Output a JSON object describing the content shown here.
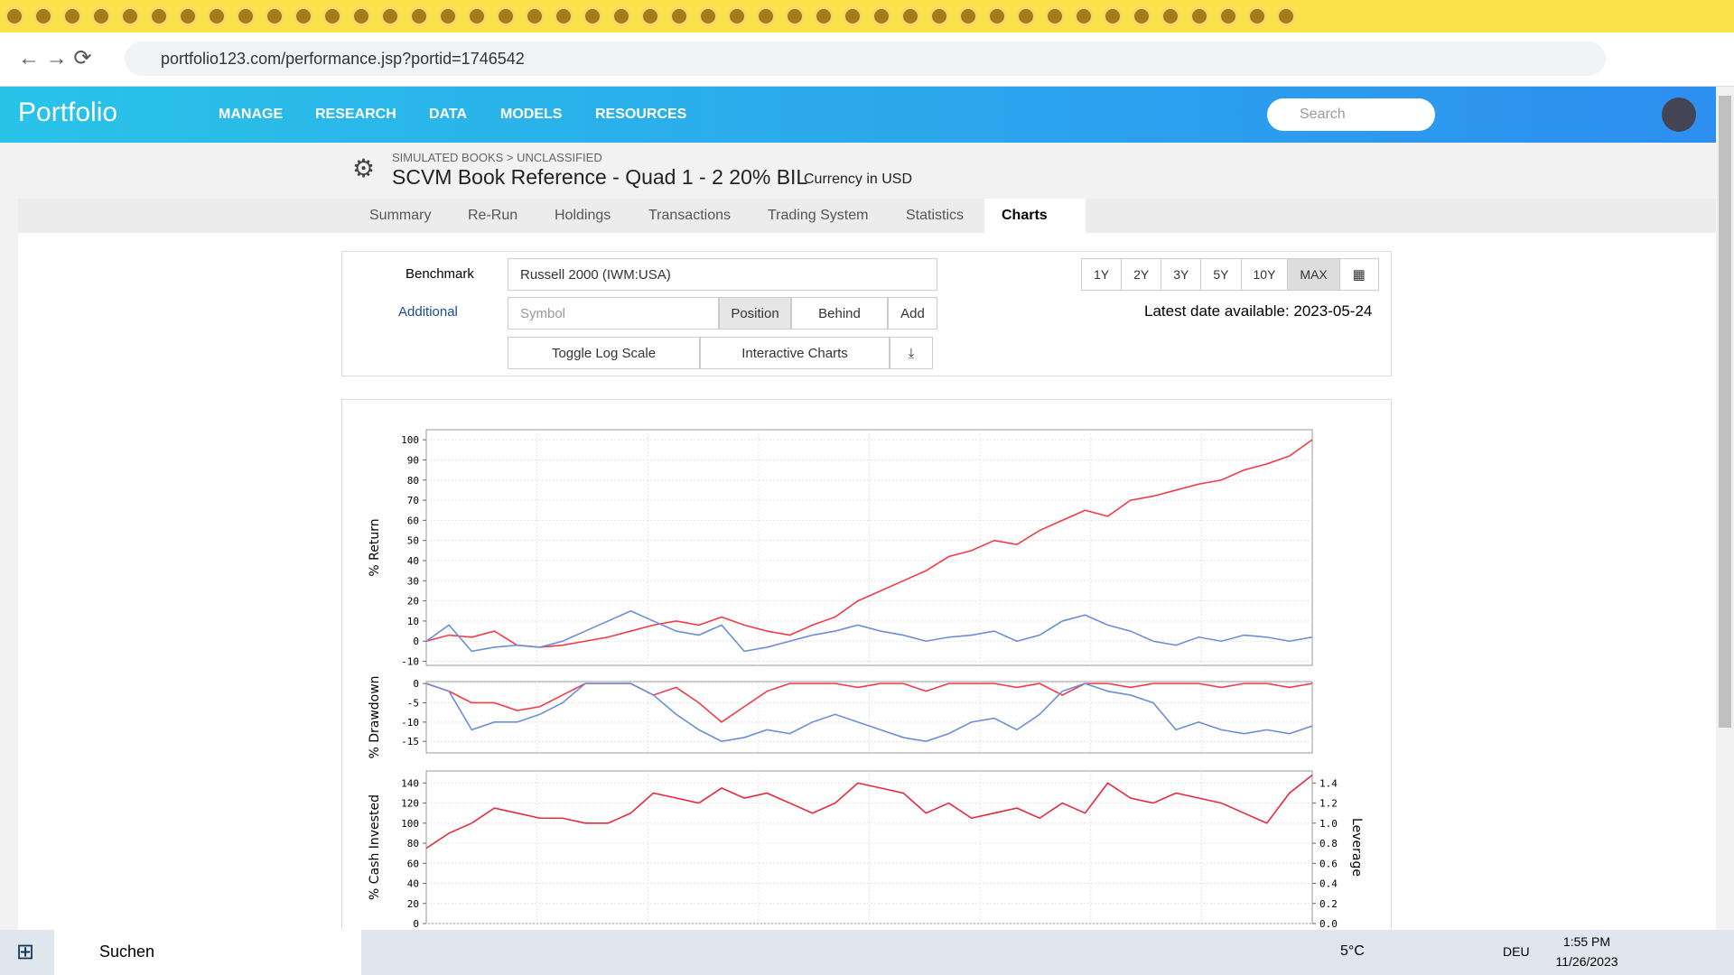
{
  "browser": {
    "url": "portfolio123.com/performance.jsp?portid=1746542"
  },
  "nav": {
    "logo": "Portfolio",
    "items": [
      "MANAGE",
      "RESEARCH",
      "DATA",
      "MODELS",
      "RESOURCES"
    ],
    "search": "Search"
  },
  "header": {
    "breadcrumb": "SIMULATED BOOKS > UNCLASSIFIED",
    "title": "SCVM Book Reference - Quad 1 - 2 20% BIL",
    "currency": "Currency in USD"
  },
  "tabs": [
    "Summary",
    "Re-Run",
    "Holdings",
    "Transactions",
    "Trading System",
    "Statistics",
    "Charts"
  ],
  "controls": {
    "benchmark_label": "Benchmark",
    "benchmark": "Russell 2000 (IWM:USA)",
    "additional_label": "Additional",
    "symbol_placeholder": "Symbol",
    "position": "Position",
    "behind": "Behind",
    "add": "Add",
    "toggle_log": "Toggle Log Scale",
    "interactive": "Interactive Charts",
    "ranges": [
      "1Y",
      "2Y",
      "3Y",
      "5Y",
      "10Y",
      "MAX"
    ],
    "latest": "Latest date available: 2023-05-24"
  },
  "chart_data": [
    {
      "type": "line",
      "ylabel": "% Return",
      "ylim": [
        -12,
        105
      ],
      "yticks": [
        -10,
        0,
        10,
        20,
        30,
        40,
        50,
        60,
        70,
        80,
        90,
        100
      ],
      "grid": true,
      "series": [
        {
          "color": "#f03c46",
          "values": [
            0,
            3,
            2,
            5,
            -2,
            -3,
            -2,
            0,
            2,
            5,
            8,
            10,
            8,
            12,
            8,
            5,
            3,
            8,
            12,
            20,
            25,
            30,
            35,
            42,
            45,
            50,
            48,
            55,
            60,
            65,
            62,
            70,
            72,
            75,
            78,
            80,
            85,
            88,
            92,
            100
          ]
        },
        {
          "color": "#6a8ed8",
          "values": [
            0,
            8,
            -5,
            -3,
            -2,
            -3,
            0,
            5,
            10,
            15,
            10,
            5,
            3,
            8,
            -5,
            -3,
            0,
            3,
            5,
            8,
            5,
            3,
            0,
            2,
            3,
            5,
            0,
            3,
            10,
            13,
            8,
            5,
            0,
            -2,
            2,
            0,
            3,
            2,
            0,
            2
          ]
        }
      ]
    },
    {
      "type": "line",
      "ylabel": "% Drawdown",
      "ylim": [
        -18,
        0.5
      ],
      "yticks": [
        0,
        -5,
        -10,
        -15
      ],
      "grid": true,
      "series": [
        {
          "color": "#f03c46",
          "values": [
            0,
            -2,
            -5,
            -5,
            -7,
            -6,
            -3,
            0,
            0,
            0,
            -3,
            -1,
            -5,
            -10,
            -6,
            -2,
            0,
            0,
            0,
            -1,
            0,
            0,
            -2,
            0,
            0,
            0,
            -1,
            0,
            -3,
            0,
            0,
            -1,
            0,
            0,
            0,
            -1,
            0,
            0,
            -1,
            0
          ]
        },
        {
          "color": "#6a8ed8",
          "values": [
            0,
            -2,
            -12,
            -10,
            -10,
            -8,
            -5,
            0,
            0,
            0,
            -3,
            -8,
            -12,
            -15,
            -14,
            -12,
            -13,
            -10,
            -8,
            -10,
            -12,
            -14,
            -15,
            -13,
            -10,
            -9,
            -12,
            -8,
            -2,
            0,
            -2,
            -3,
            -5,
            -12,
            -10,
            -12,
            -13,
            -12,
            -13,
            -11
          ]
        }
      ]
    },
    {
      "type": "line",
      "ylabel": "% Cash Invested",
      "y2label": "Leverage",
      "ylim": [
        0,
        152
      ],
      "yticks": [
        0,
        20,
        40,
        60,
        80,
        100,
        120,
        140
      ],
      "y2lim": [
        0,
        1.52
      ],
      "y2ticks": [
        {
          "value": 0,
          "label": "0.0"
        },
        {
          "value": 0.2,
          "label": "0.2"
        },
        {
          "value": 0.4,
          "label": "0.4"
        },
        {
          "value": 0.6,
          "label": "0.6"
        },
        {
          "value": 0.8,
          "label": "0.8"
        },
        {
          "value": 1,
          "label": "1.0"
        },
        {
          "value": 1.2,
          "label": "1.2"
        },
        {
          "value": 1.4,
          "label": "1.4"
        }
      ],
      "grid": true,
      "series": [
        {
          "color": "#e8283c",
          "values": [
            75,
            90,
            100,
            115,
            110,
            105,
            105,
            100,
            100,
            110,
            130,
            125,
            120,
            135,
            125,
            130,
            120,
            110,
            120,
            140,
            135,
            130,
            110,
            120,
            105,
            110,
            115,
            105,
            120,
            110,
            140,
            125,
            120,
            130,
            125,
            120,
            110,
            100,
            130,
            148
          ]
        }
      ]
    }
  ],
  "taskbar": {
    "search": "Suchen",
    "weather": "5°C",
    "lang": "DEU",
    "time": "1:55 PM",
    "date": "11/26/2023"
  }
}
